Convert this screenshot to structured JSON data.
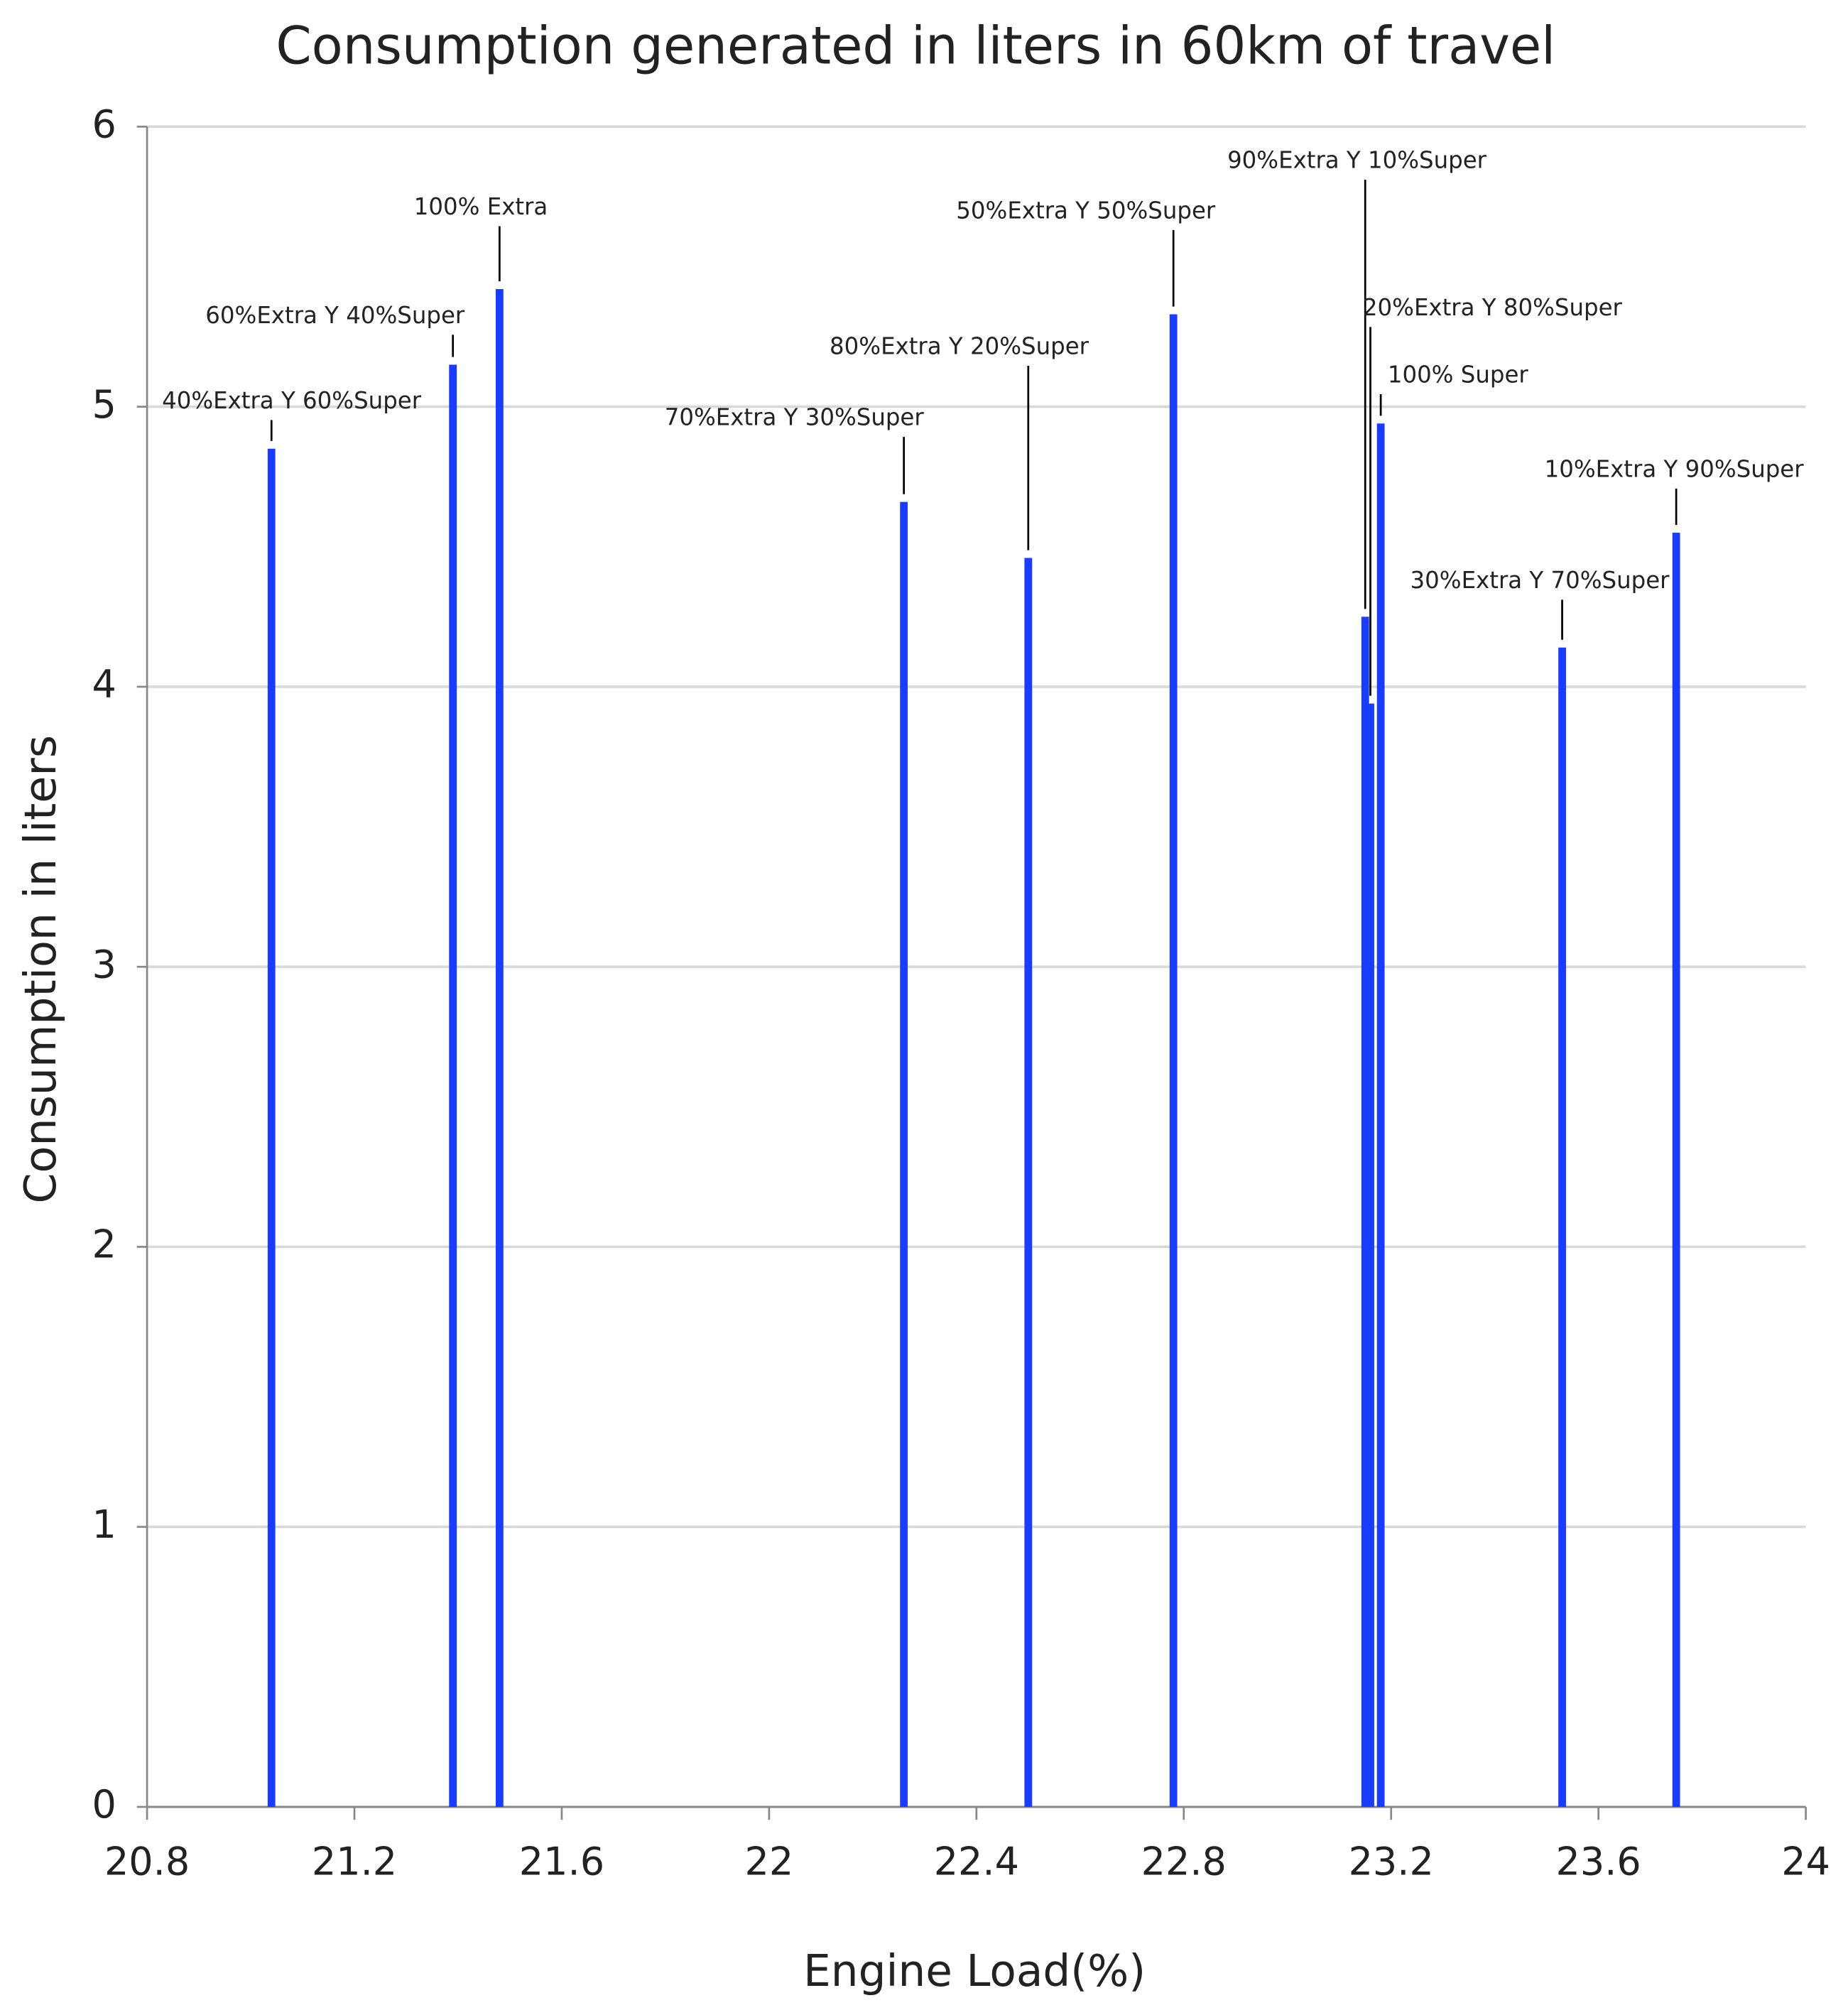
{
  "chart_data": {
    "type": "stem",
    "title": "Consumption generated in liters in 60km of travel",
    "x_label": "Engine Load(%)",
    "y_label": "Consumption in liters",
    "x": [
      21.04,
      21.39,
      21.48,
      22.26,
      22.5,
      22.78,
      23.15,
      23.16,
      23.18,
      23.53,
      23.75
    ],
    "values": [
      4.85,
      5.15,
      5.42,
      4.66,
      4.46,
      5.33,
      4.25,
      3.94,
      4.94,
      4.14,
      4.55
    ],
    "labels": [
      "40%Extra Y 60%Super",
      "60%Extra Y 40%Super",
      "100% Extra",
      "70%Extra Y 30%Super",
      "80%Extra Y 20%Super",
      "50%Extra Y 50%Super",
      "90%Extra Y 10%Super",
      "20%Extra Y 80%Super",
      "100% Super",
      "30%Extra Y 70%Super",
      "10%Extra Y 90%Super"
    ],
    "color": "#1a3cff",
    "xlim": [
      20.8,
      24
    ],
    "xticks": [
      20.8,
      21.2,
      21.6,
      22,
      22.4,
      22.8,
      23.2,
      23.6,
      24
    ],
    "ylim": [
      0,
      6
    ],
    "yticks": [
      0,
      1,
      2,
      3,
      4,
      5,
      6
    ],
    "grid": true
  }
}
